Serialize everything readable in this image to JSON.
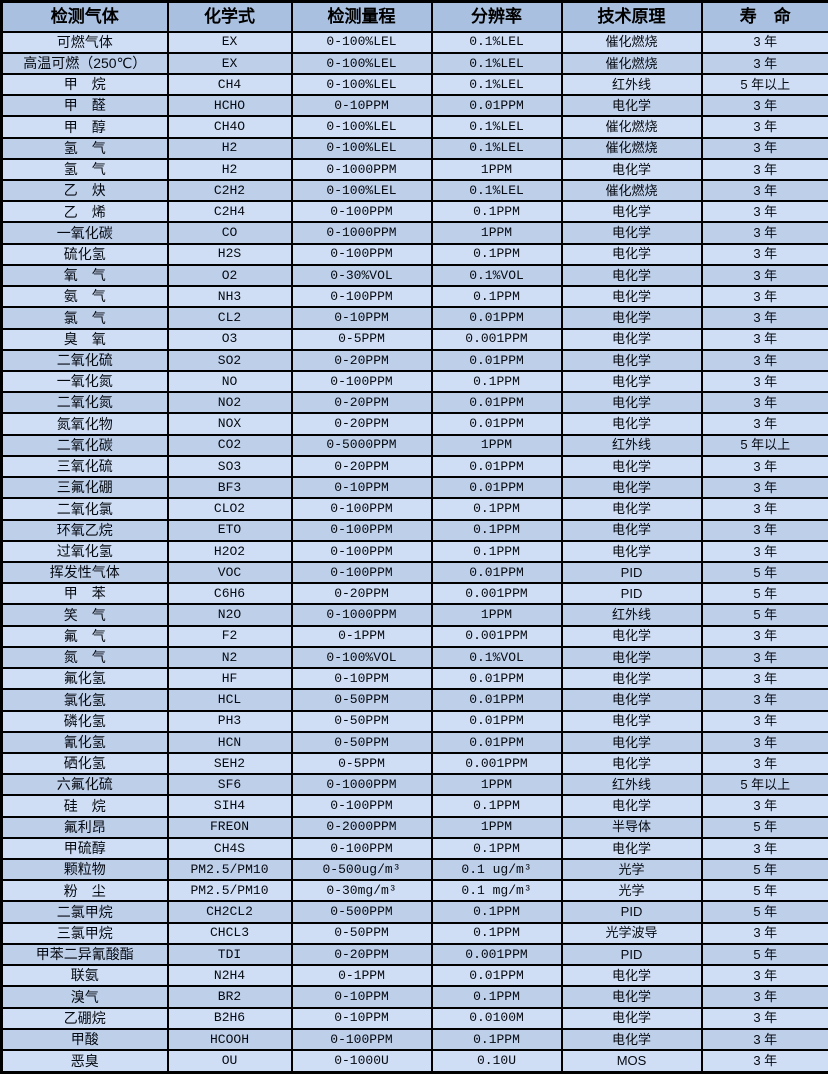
{
  "colors": {
    "header_bg": "#a9c0e0",
    "row_light": "#cfdef4",
    "row_dark": "#bdcfe9",
    "border": "#000000",
    "text": "#060a12"
  },
  "table": {
    "columns": [
      {
        "key": "gas",
        "label": "检测气体"
      },
      {
        "key": "formula",
        "label": "化学式"
      },
      {
        "key": "range",
        "label": "检测量程"
      },
      {
        "key": "resolution",
        "label": "分辨率"
      },
      {
        "key": "principle",
        "label": "技术原理"
      },
      {
        "key": "lifespan",
        "label": "寿　命"
      }
    ],
    "rows": [
      [
        "可燃气体",
        "EX",
        "0-100%LEL",
        "0.1%LEL",
        "催化燃烧",
        "3 年"
      ],
      [
        "高温可燃（250℃）",
        "EX",
        "0-100%LEL",
        "0.1%LEL",
        "催化燃烧",
        "3 年"
      ],
      [
        "甲　烷",
        "CH4",
        "0-100%LEL",
        "0.1%LEL",
        "红外线",
        "5 年以上"
      ],
      [
        "甲　醛",
        "HCHO",
        "0-10PPM",
        "0.01PPM",
        "电化学",
        "3 年"
      ],
      [
        "甲　醇",
        "CH4O",
        "0-100%LEL",
        "0.1%LEL",
        "催化燃烧",
        "3 年"
      ],
      [
        "氢　气",
        "H2",
        "0-100%LEL",
        "0.1%LEL",
        "催化燃烧",
        "3 年"
      ],
      [
        "氢　气",
        "H2",
        "0-1000PPM",
        "1PPM",
        "电化学",
        "3 年"
      ],
      [
        "乙　炔",
        "C2H2",
        "0-100%LEL",
        "0.1%LEL",
        "催化燃烧",
        "3 年"
      ],
      [
        "乙　烯",
        "C2H4",
        "0-100PPM",
        "0.1PPM",
        "电化学",
        "3 年"
      ],
      [
        "一氧化碳",
        "CO",
        "0-1000PPM",
        "1PPM",
        "电化学",
        "3 年"
      ],
      [
        "硫化氢",
        "H2S",
        "0-100PPM",
        "0.1PPM",
        "电化学",
        "3 年"
      ],
      [
        "氧　气",
        "O2",
        "0-30%VOL",
        "0.1%VOL",
        "电化学",
        "3 年"
      ],
      [
        "氨　气",
        "NH3",
        "0-100PPM",
        "0.1PPM",
        "电化学",
        "3 年"
      ],
      [
        "氯　气",
        "CL2",
        "0-10PPM",
        "0.01PPM",
        "电化学",
        "3 年"
      ],
      [
        "臭　氧",
        "O3",
        "0-5PPM",
        "0.001PPM",
        "电化学",
        "3 年"
      ],
      [
        "二氧化硫",
        "SO2",
        "0-20PPM",
        "0.01PPM",
        "电化学",
        "3 年"
      ],
      [
        "一氧化氮",
        "NO",
        "0-100PPM",
        "0.1PPM",
        "电化学",
        "3 年"
      ],
      [
        "二氧化氮",
        "NO2",
        "0-20PPM",
        "0.01PPM",
        "电化学",
        "3 年"
      ],
      [
        "氮氧化物",
        "NOX",
        "0-20PPM",
        "0.01PPM",
        "电化学",
        "3 年"
      ],
      [
        "二氧化碳",
        "CO2",
        "0-5000PPM",
        "1PPM",
        "红外线",
        "5 年以上"
      ],
      [
        "三氧化硫",
        "SO3",
        "0-20PPM",
        "0.01PPM",
        "电化学",
        "3 年"
      ],
      [
        "三氟化硼",
        "BF3",
        "0-10PPM",
        "0.01PPM",
        "电化学",
        "3 年"
      ],
      [
        "二氧化氯",
        "CLO2",
        "0-100PPM",
        "0.1PPM",
        "电化学",
        "3 年"
      ],
      [
        "环氧乙烷",
        "ETO",
        "0-100PPM",
        "0.1PPM",
        "电化学",
        "3 年"
      ],
      [
        "过氧化氢",
        "H2O2",
        "0-100PPM",
        "0.1PPM",
        "电化学",
        "3 年"
      ],
      [
        "挥发性气体",
        "VOC",
        "0-100PPM",
        "0.01PPM",
        "PID",
        "5 年"
      ],
      [
        "甲　苯",
        "C6H6",
        "0-20PPM",
        "0.001PPM",
        "PID",
        "5 年"
      ],
      [
        "笑　气",
        "N2O",
        "0-1000PPM",
        "1PPM",
        "红外线",
        "5 年"
      ],
      [
        "氟　气",
        "F2",
        "0-1PPM",
        "0.001PPM",
        "电化学",
        "3 年"
      ],
      [
        "氮　气",
        "N2",
        "0-100%VOL",
        "0.1%VOL",
        "电化学",
        "3 年"
      ],
      [
        "氟化氢",
        "HF",
        "0-10PPM",
        "0.01PPM",
        "电化学",
        "3 年"
      ],
      [
        "氯化氢",
        "HCL",
        "0-50PPM",
        "0.01PPM",
        "电化学",
        "3 年"
      ],
      [
        "磷化氢",
        "PH3",
        "0-50PPM",
        "0.01PPM",
        "电化学",
        "3 年"
      ],
      [
        "氰化氢",
        "HCN",
        "0-50PPM",
        "0.01PPM",
        "电化学",
        "3 年"
      ],
      [
        "硒化氢",
        "SEH2",
        "0-5PPM",
        "0.001PPM",
        "电化学",
        "3 年"
      ],
      [
        "六氟化硫",
        "SF6",
        "0-1000PPM",
        "1PPM",
        "红外线",
        "5 年以上"
      ],
      [
        "硅　烷",
        "SIH4",
        "0-100PPM",
        "0.1PPM",
        "电化学",
        "3 年"
      ],
      [
        "氟利昂",
        "FREON",
        "0-2000PPM",
        "1PPM",
        "半导体",
        "5 年"
      ],
      [
        "甲硫醇",
        "CH4S",
        "0-100PPM",
        "0.1PPM",
        "电化学",
        "3 年"
      ],
      [
        "颗粒物",
        "PM2.5/PM10",
        "0-500ug/m³",
        "0.1 ug/m³",
        "光学",
        "5 年"
      ],
      [
        "粉　尘",
        "PM2.5/PM10",
        "0-30mg/m³",
        "0.1 mg/m³",
        "光学",
        "5 年"
      ],
      [
        "二氯甲烷",
        "CH2CL2",
        "0-500PPM",
        "0.1PPM",
        "PID",
        "5 年"
      ],
      [
        "三氯甲烷",
        "CHCL3",
        "0-50PPM",
        "0.1PPM",
        "光学波导",
        "3 年"
      ],
      [
        "甲苯二异氰酸酯",
        "TDI",
        "0-20PPM",
        "0.001PPM",
        "PID",
        "5 年"
      ],
      [
        "联氨",
        "N2H4",
        "0-1PPM",
        "0.01PPM",
        "电化学",
        "3 年"
      ],
      [
        "溴气",
        "BR2",
        "0-10PPM",
        "0.1PPM",
        "电化学",
        "3 年"
      ],
      [
        "乙硼烷",
        "B2H6",
        "0-10PPM",
        "0.0100M",
        "电化学",
        "3 年"
      ],
      [
        "甲酸",
        "HCOOH",
        "0-100PPM",
        "0.1PPM",
        "电化学",
        "3 年"
      ],
      [
        "恶臭",
        "OU",
        "0-1000U",
        "0.10U",
        "MOS",
        "3 年"
      ]
    ]
  }
}
